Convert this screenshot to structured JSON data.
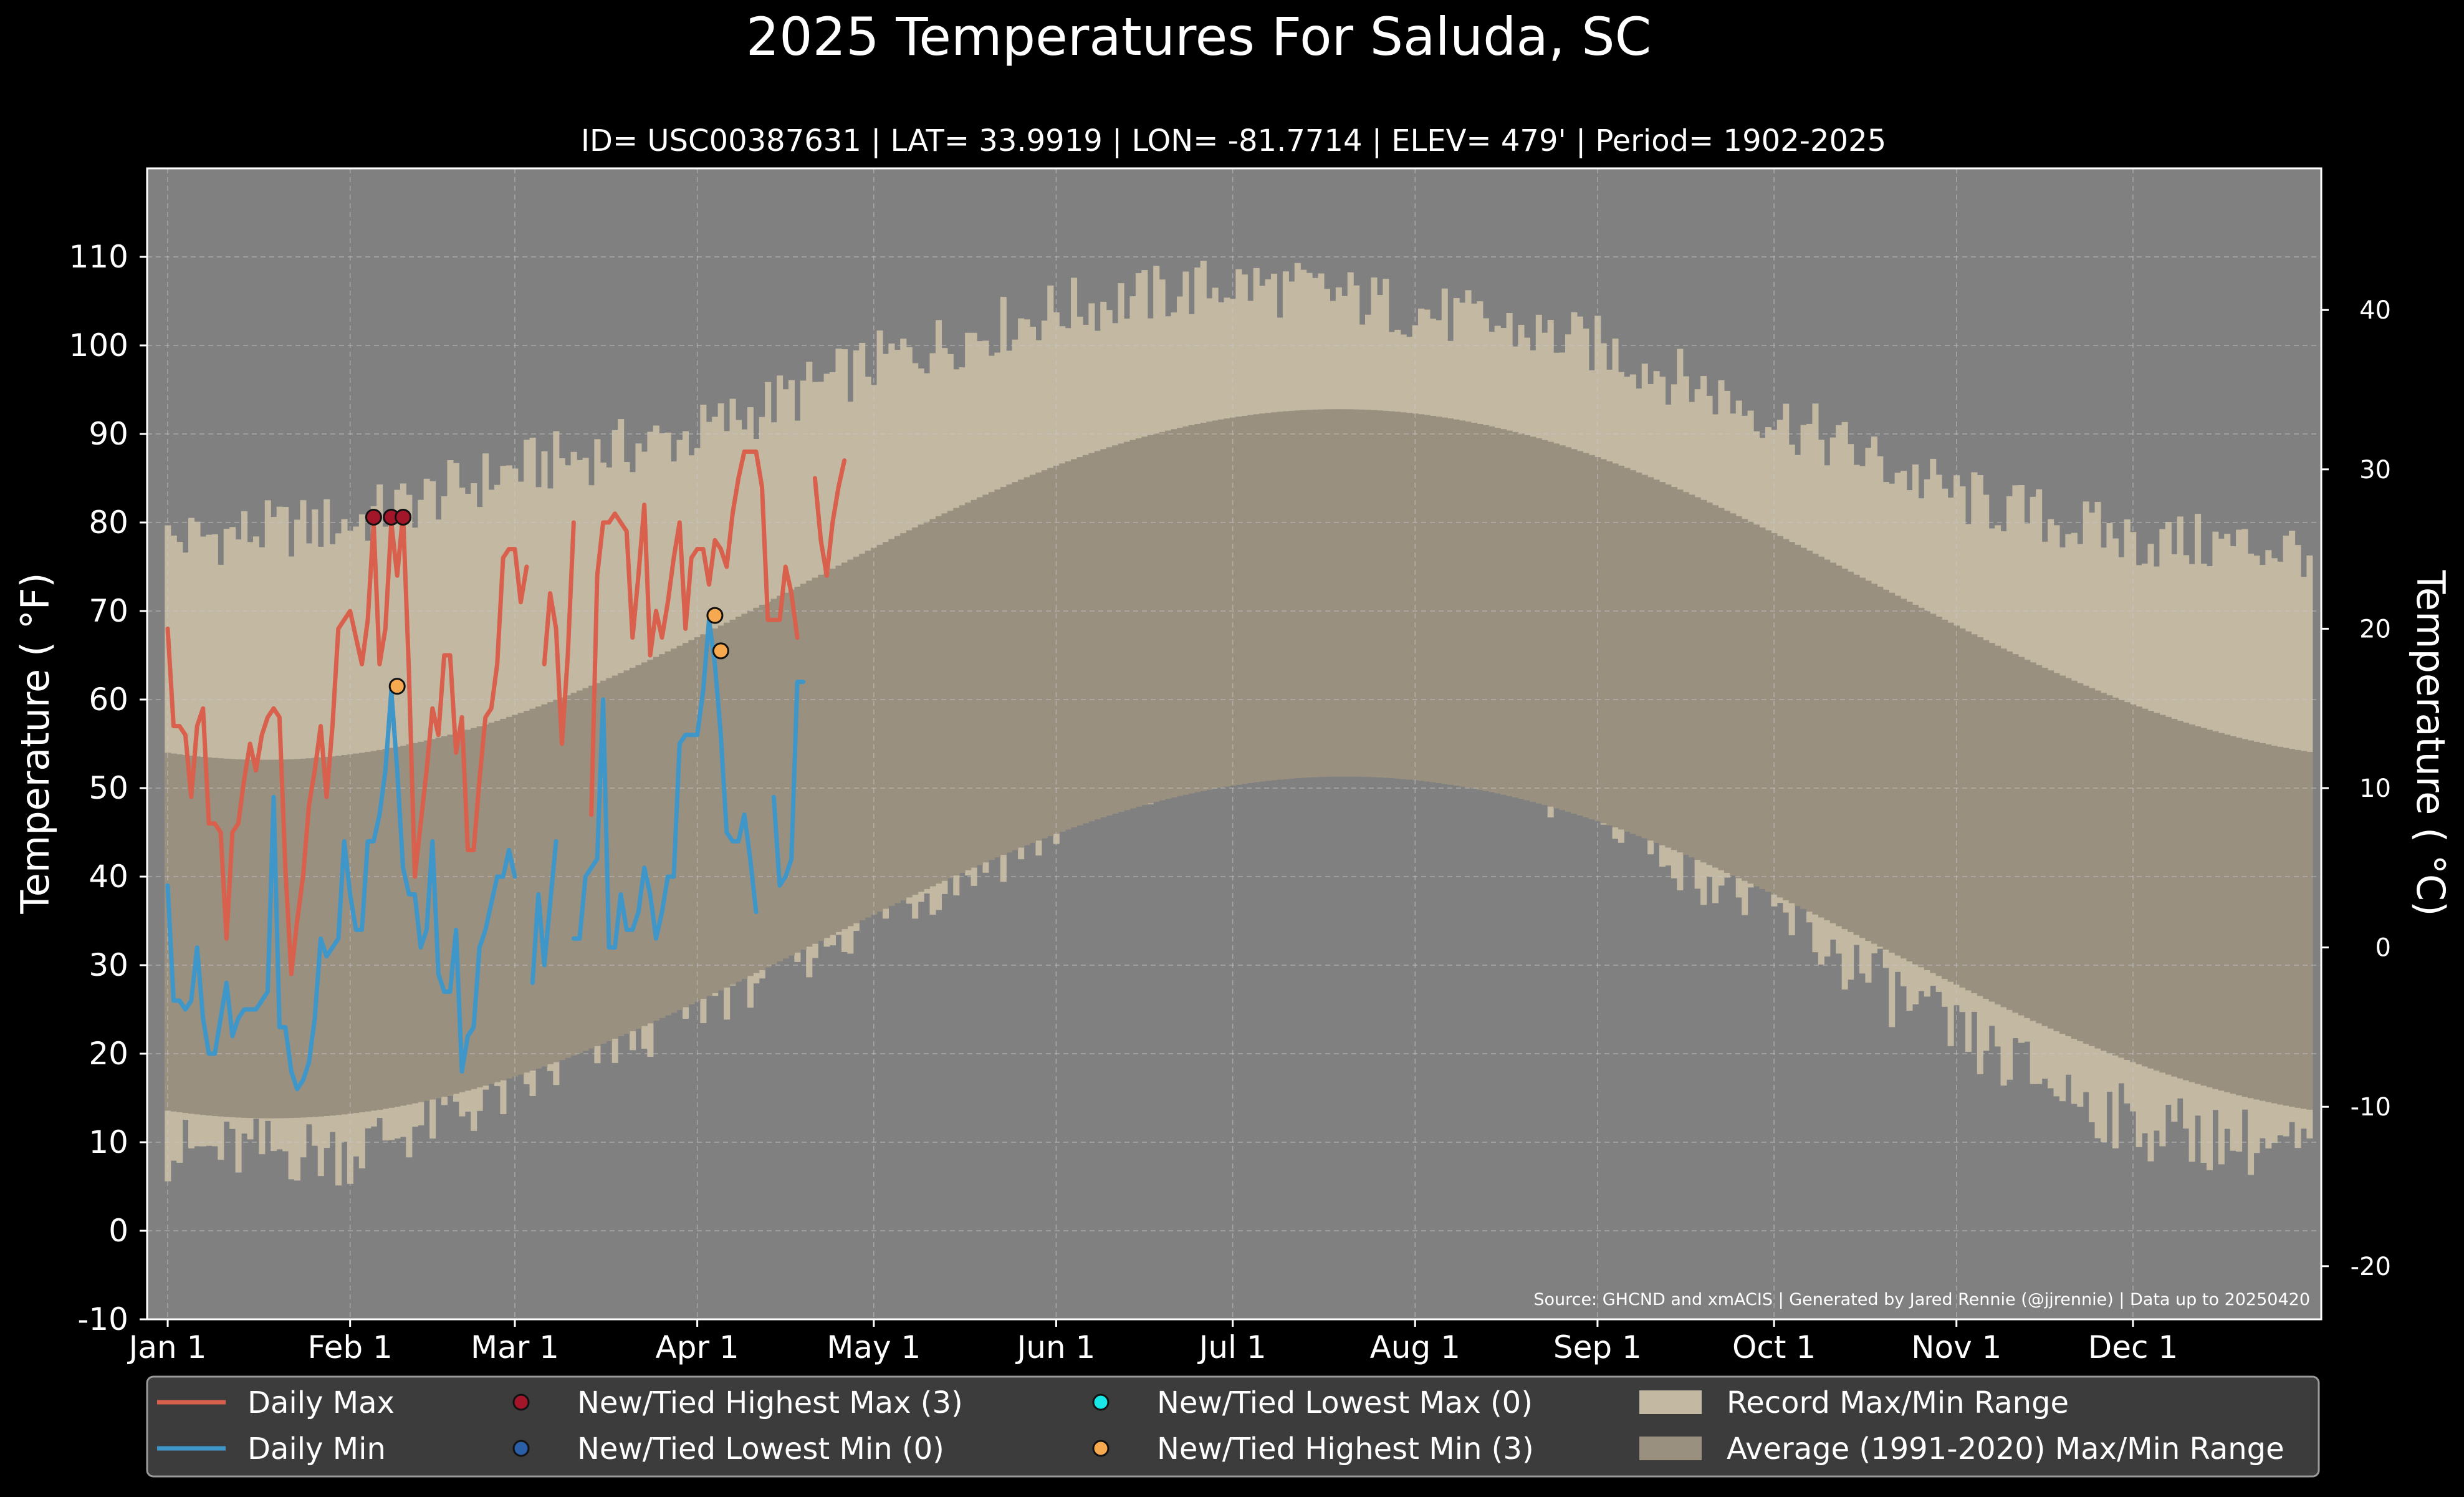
{
  "chart_data": {
    "type": "line",
    "title": "2025 Temperatures For Saluda, SC",
    "subtitle": "ID= USC00387631 | LAT= 33.9919 | LON= -81.7714 | ELEV= 479' | Period= 1902-2025",
    "ylabel": "Temperature ($^\\circ$F)",
    "ylabel_display": "Temperature ( °F)",
    "ylabel_right_display": "Temperature ( °C)",
    "ylim": [
      -10,
      120
    ],
    "yticks": [
      -10,
      0,
      10,
      20,
      30,
      40,
      50,
      60,
      70,
      80,
      90,
      100,
      110
    ],
    "yticks_celsius": [
      -20,
      -10,
      0,
      10,
      20,
      30,
      40
    ],
    "xlim_day": [
      -2.5,
      367
    ],
    "x_ticks": [
      {
        "label": "Jan 1",
        "day": 1
      },
      {
        "label": "Feb 1",
        "day": 32
      },
      {
        "label": "Mar 1",
        "day": 60
      },
      {
        "label": "Apr 1",
        "day": 91
      },
      {
        "label": "May 1",
        "day": 121
      },
      {
        "label": "Jun 1",
        "day": 152
      },
      {
        "label": "Jul 1",
        "day": 182
      },
      {
        "label": "Aug 1",
        "day": 213
      },
      {
        "label": "Sep 1",
        "day": 244
      },
      {
        "label": "Oct 1",
        "day": 274
      },
      {
        "label": "Nov 1",
        "day": 305
      },
      {
        "label": "Dec 1",
        "day": 335
      }
    ],
    "source": "Source: GHCND and xmACIS | Generated by Jared Rennie (@jjrennie) | Data up to 20250420",
    "record_max_monthly_approx": [
      [
        1,
        78
      ],
      [
        32,
        80
      ],
      [
        60,
        86
      ],
      [
        91,
        90
      ],
      [
        121,
        98
      ],
      [
        152,
        104
      ],
      [
        182,
        107
      ],
      [
        197,
        106
      ],
      [
        213,
        104
      ],
      [
        244,
        100
      ],
      [
        274,
        92
      ],
      [
        305,
        83
      ],
      [
        335,
        78
      ],
      [
        365,
        77
      ]
    ],
    "record_min_monthly_approx": [
      [
        1,
        9
      ],
      [
        32,
        9
      ],
      [
        60,
        16
      ],
      [
        91,
        26
      ],
      [
        121,
        36
      ],
      [
        152,
        46
      ],
      [
        182,
        55
      ],
      [
        200,
        58
      ],
      [
        213,
        56
      ],
      [
        244,
        48
      ],
      [
        274,
        36
      ],
      [
        305,
        22
      ],
      [
        335,
        12
      ],
      [
        365,
        9
      ]
    ],
    "normal_max_params": {
      "mean": 73.0,
      "amp": 19.8,
      "peak_day": 200
    },
    "normal_min_params": {
      "mean": 51.0,
      "amp": 19.3,
      "peak_day": 201
    },
    "series": [
      {
        "name": "Daily Max",
        "color": "#d9604c",
        "x_start": 1,
        "values": [
          68,
          57,
          57,
          56,
          49,
          57,
          59,
          46,
          46,
          45,
          33,
          45,
          46,
          51,
          55,
          52,
          56,
          58,
          59,
          58,
          41,
          29,
          35,
          40,
          48,
          52,
          57,
          49,
          57,
          68,
          69,
          70,
          67,
          64,
          69,
          80,
          64,
          68,
          80,
          74,
          81,
          63,
          40,
          46,
          52,
          59,
          56,
          65,
          65,
          54,
          58,
          43,
          43,
          51,
          58,
          59,
          64,
          76,
          77,
          77,
          71,
          75,
          null,
          null,
          64,
          72,
          68,
          55,
          65,
          80,
          null,
          null,
          47,
          74,
          80,
          80,
          81,
          80,
          79,
          67,
          74,
          82,
          65,
          70,
          67,
          71,
          76,
          80,
          68,
          76,
          77,
          77,
          73,
          78,
          77,
          75,
          81,
          85,
          88,
          88,
          88,
          84,
          69,
          69,
          69,
          75,
          72,
          67,
          null,
          null,
          85,
          78,
          74,
          80,
          84,
          87
        ]
      },
      {
        "name": "Daily Min",
        "color": "#3f96c9",
        "x_start": 1,
        "values": [
          39,
          26,
          26,
          25,
          26,
          32,
          24,
          20,
          20,
          24,
          28,
          22,
          24,
          25,
          25,
          25,
          26,
          27,
          49,
          23,
          23,
          18,
          16,
          17,
          19,
          24,
          33,
          31,
          32,
          33,
          44,
          38,
          34,
          34,
          44,
          44,
          47,
          52,
          61,
          52,
          41,
          38,
          38,
          32,
          34,
          44,
          29,
          27,
          27,
          34,
          18,
          22,
          23,
          32,
          34,
          37,
          40,
          40,
          43,
          40,
          null,
          null,
          28,
          38,
          30,
          37,
          44,
          null,
          null,
          33,
          33,
          40,
          41,
          42,
          60,
          32,
          32,
          38,
          34,
          34,
          36,
          41,
          38,
          33,
          36,
          40,
          40,
          55,
          56,
          56,
          56,
          61,
          69,
          64,
          56,
          45,
          44,
          44,
          47,
          42,
          36,
          null,
          null,
          49,
          39,
          40,
          42,
          62,
          62
        ]
      }
    ],
    "markers": [
      {
        "name": "New/Tied Highest Max",
        "color": "#a3162a",
        "points": [
          [
            36,
            80.6
          ],
          [
            39,
            80.6
          ],
          [
            41,
            80.6
          ]
        ]
      },
      {
        "name": "New/Tied Highest Min",
        "color": "#f6a94f",
        "points": [
          [
            40,
            61.5
          ],
          [
            94,
            69.5
          ],
          [
            95,
            65.5
          ]
        ]
      }
    ],
    "legend": {
      "placement": "bottom",
      "entries": [
        {
          "label": "Daily Max",
          "kind": "line",
          "color": "#d9604c"
        },
        {
          "label": "New/Tied Highest Max (3)",
          "kind": "dot",
          "color": "#a3162a"
        },
        {
          "label": "New/Tied Lowest Max (0)",
          "kind": "dot",
          "color": "#19e6e6"
        },
        {
          "label": "Record Max/Min Range",
          "kind": "patch",
          "color": "#c3b9a3"
        },
        {
          "label": "Daily Min",
          "kind": "line",
          "color": "#3f96c9"
        },
        {
          "label": "New/Tied Lowest Min (0)",
          "kind": "dot",
          "color": "#2a5fa8"
        },
        {
          "label": "New/Tied Highest Min (3)",
          "kind": "dot",
          "color": "#f6a94f"
        },
        {
          "label": "Average (1991-2020) Max/Min Range",
          "kind": "patch",
          "color": "#9a9080"
        }
      ]
    },
    "colors": {
      "background": "#000000",
      "plot_background": "#808080",
      "record_range": "#c3b9a3",
      "normal_range": "#9a9080",
      "grid": "#c8c8c8",
      "legend_background": "#3c3c3c"
    },
    "grid": true
  }
}
